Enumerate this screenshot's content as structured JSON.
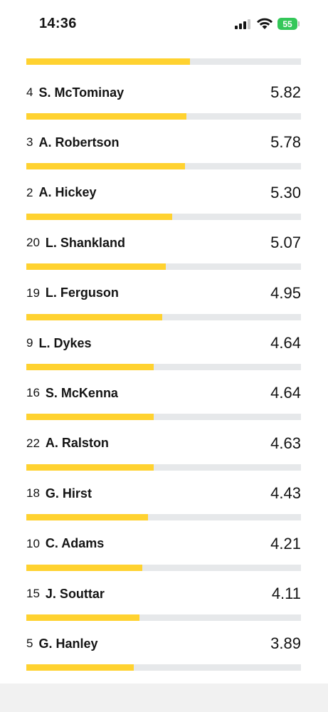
{
  "status_bar": {
    "time": "14:36",
    "battery": "55"
  },
  "colors": {
    "bar_fill": "#ffd230",
    "bar_track": "#e6e8ea",
    "battery": "#34c759"
  },
  "top_bar": {
    "fill_fraction": 0.595
  },
  "players": [
    {
      "number": "4",
      "name": "S. McTominay",
      "rating": "5.82",
      "fill_fraction": 0.583
    },
    {
      "number": "3",
      "name": "A. Robertson",
      "rating": "5.78",
      "fill_fraction": 0.578
    },
    {
      "number": "2",
      "name": "A. Hickey",
      "rating": "5.30",
      "fill_fraction": 0.531
    },
    {
      "number": "20",
      "name": "L. Shankland",
      "rating": "5.07",
      "fill_fraction": 0.508
    },
    {
      "number": "19",
      "name": "L. Ferguson",
      "rating": "4.95",
      "fill_fraction": 0.495
    },
    {
      "number": "9",
      "name": "L. Dykes",
      "rating": "4.64",
      "fill_fraction": 0.464
    },
    {
      "number": "16",
      "name": "S. McKenna",
      "rating": "4.64",
      "fill_fraction": 0.464
    },
    {
      "number": "22",
      "name": "A. Ralston",
      "rating": "4.63",
      "fill_fraction": 0.463
    },
    {
      "number": "18",
      "name": "G. Hirst",
      "rating": "4.43",
      "fill_fraction": 0.443
    },
    {
      "number": "10",
      "name": "C. Adams",
      "rating": "4.21",
      "fill_fraction": 0.422
    },
    {
      "number": "15",
      "name": "J. Souttar",
      "rating": "4.11",
      "fill_fraction": 0.412
    },
    {
      "number": "5",
      "name": "G. Hanley",
      "rating": "3.89",
      "fill_fraction": 0.39
    }
  ]
}
